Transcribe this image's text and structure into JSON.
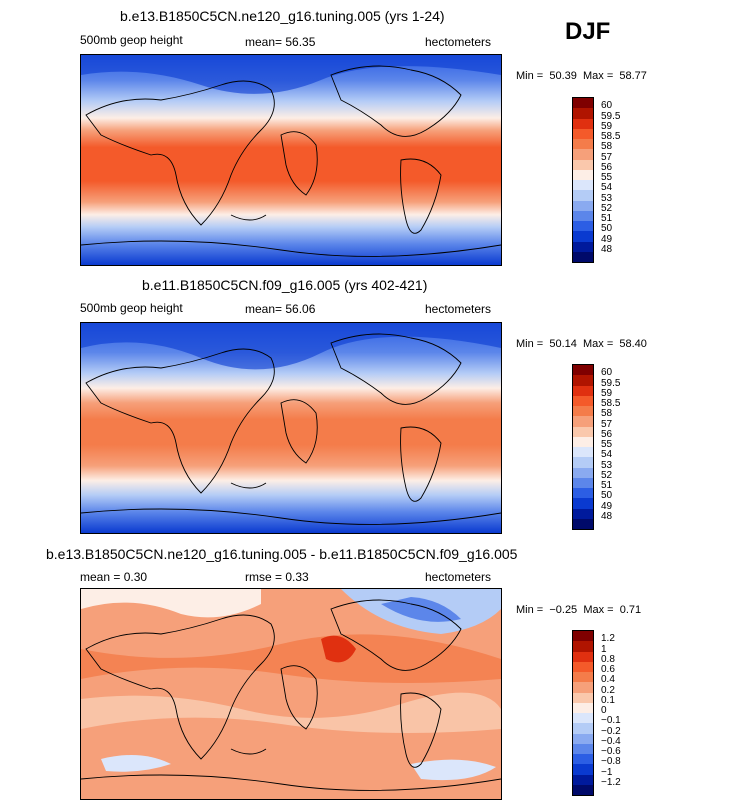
{
  "season": "DJF",
  "panels": [
    {
      "title": "b.e13.B1850C5CN.ne120_g16.tuning.005 (yrs 1-24)",
      "left_label": "500mb geop height",
      "stat1": "mean=  56.35",
      "stat2": "",
      "units": "hectometers",
      "min_label": "Min =",
      "min": "50.39",
      "max_label": "Max =",
      "max": "58.77",
      "colorbar": {
        "labels": [
          "60",
          "59.5",
          "59",
          "58.5",
          "58",
          "57",
          "56",
          "55",
          "54",
          "53",
          "52",
          "51",
          "50",
          "49",
          "48"
        ],
        "colors": [
          "#7f0000",
          "#b01400",
          "#e03010",
          "#f45a2a",
          "#f47c4a",
          "#f6a07a",
          "#fac8ac",
          "#fdeee6",
          "#dbe6fb",
          "#b4ccf6",
          "#8aaaf0",
          "#5c86ea",
          "#2c5ee4",
          "#0a3ad0",
          "#001a9c",
          "#000a6a"
        ]
      }
    },
    {
      "title": "b.e11.B1850C5CN.f09_g16.005 (yrs 402-421)",
      "left_label": "500mb geop height",
      "stat1": "mean=  56.06",
      "stat2": "",
      "units": "hectometers",
      "min_label": "Min =",
      "min": "50.14",
      "max_label": "Max =",
      "max": "58.40",
      "colorbar": {
        "labels": [
          "60",
          "59.5",
          "59",
          "58.5",
          "58",
          "57",
          "56",
          "55",
          "54",
          "53",
          "52",
          "51",
          "50",
          "49",
          "48"
        ],
        "colors": [
          "#7f0000",
          "#b01400",
          "#e03010",
          "#f45a2a",
          "#f47c4a",
          "#f6a07a",
          "#fac8ac",
          "#fdeee6",
          "#dbe6fb",
          "#b4ccf6",
          "#8aaaf0",
          "#5c86ea",
          "#2c5ee4",
          "#0a3ad0",
          "#001a9c",
          "#000a6a"
        ]
      }
    },
    {
      "title": "b.e13.B1850C5CN.ne120_g16.tuning.005 - b.e11.B1850C5CN.f09_g16.005",
      "left_label": "mean =   0.30",
      "stat1": "rmse =   0.33",
      "stat2": "",
      "units": "hectometers",
      "min_label": "Min =",
      "min": "−0.25",
      "max_label": "Max =",
      "max": "0.71",
      "colorbar": {
        "labels": [
          "1.2",
          "1",
          "0.8",
          "0.6",
          "0.4",
          "0.2",
          "0.1",
          "0",
          "−0.1",
          "−0.2",
          "−0.4",
          "−0.6",
          "−0.8",
          "−1",
          "−1.2"
        ],
        "colors": [
          "#7f0000",
          "#b01400",
          "#e03010",
          "#f45a2a",
          "#f47c4a",
          "#f6a07a",
          "#fac8ac",
          "#fdeee6",
          "#dbe6fb",
          "#b4ccf6",
          "#8aaaf0",
          "#5c86ea",
          "#2c5ee4",
          "#0a3ad0",
          "#001a9c",
          "#000a6a"
        ]
      }
    }
  ]
}
